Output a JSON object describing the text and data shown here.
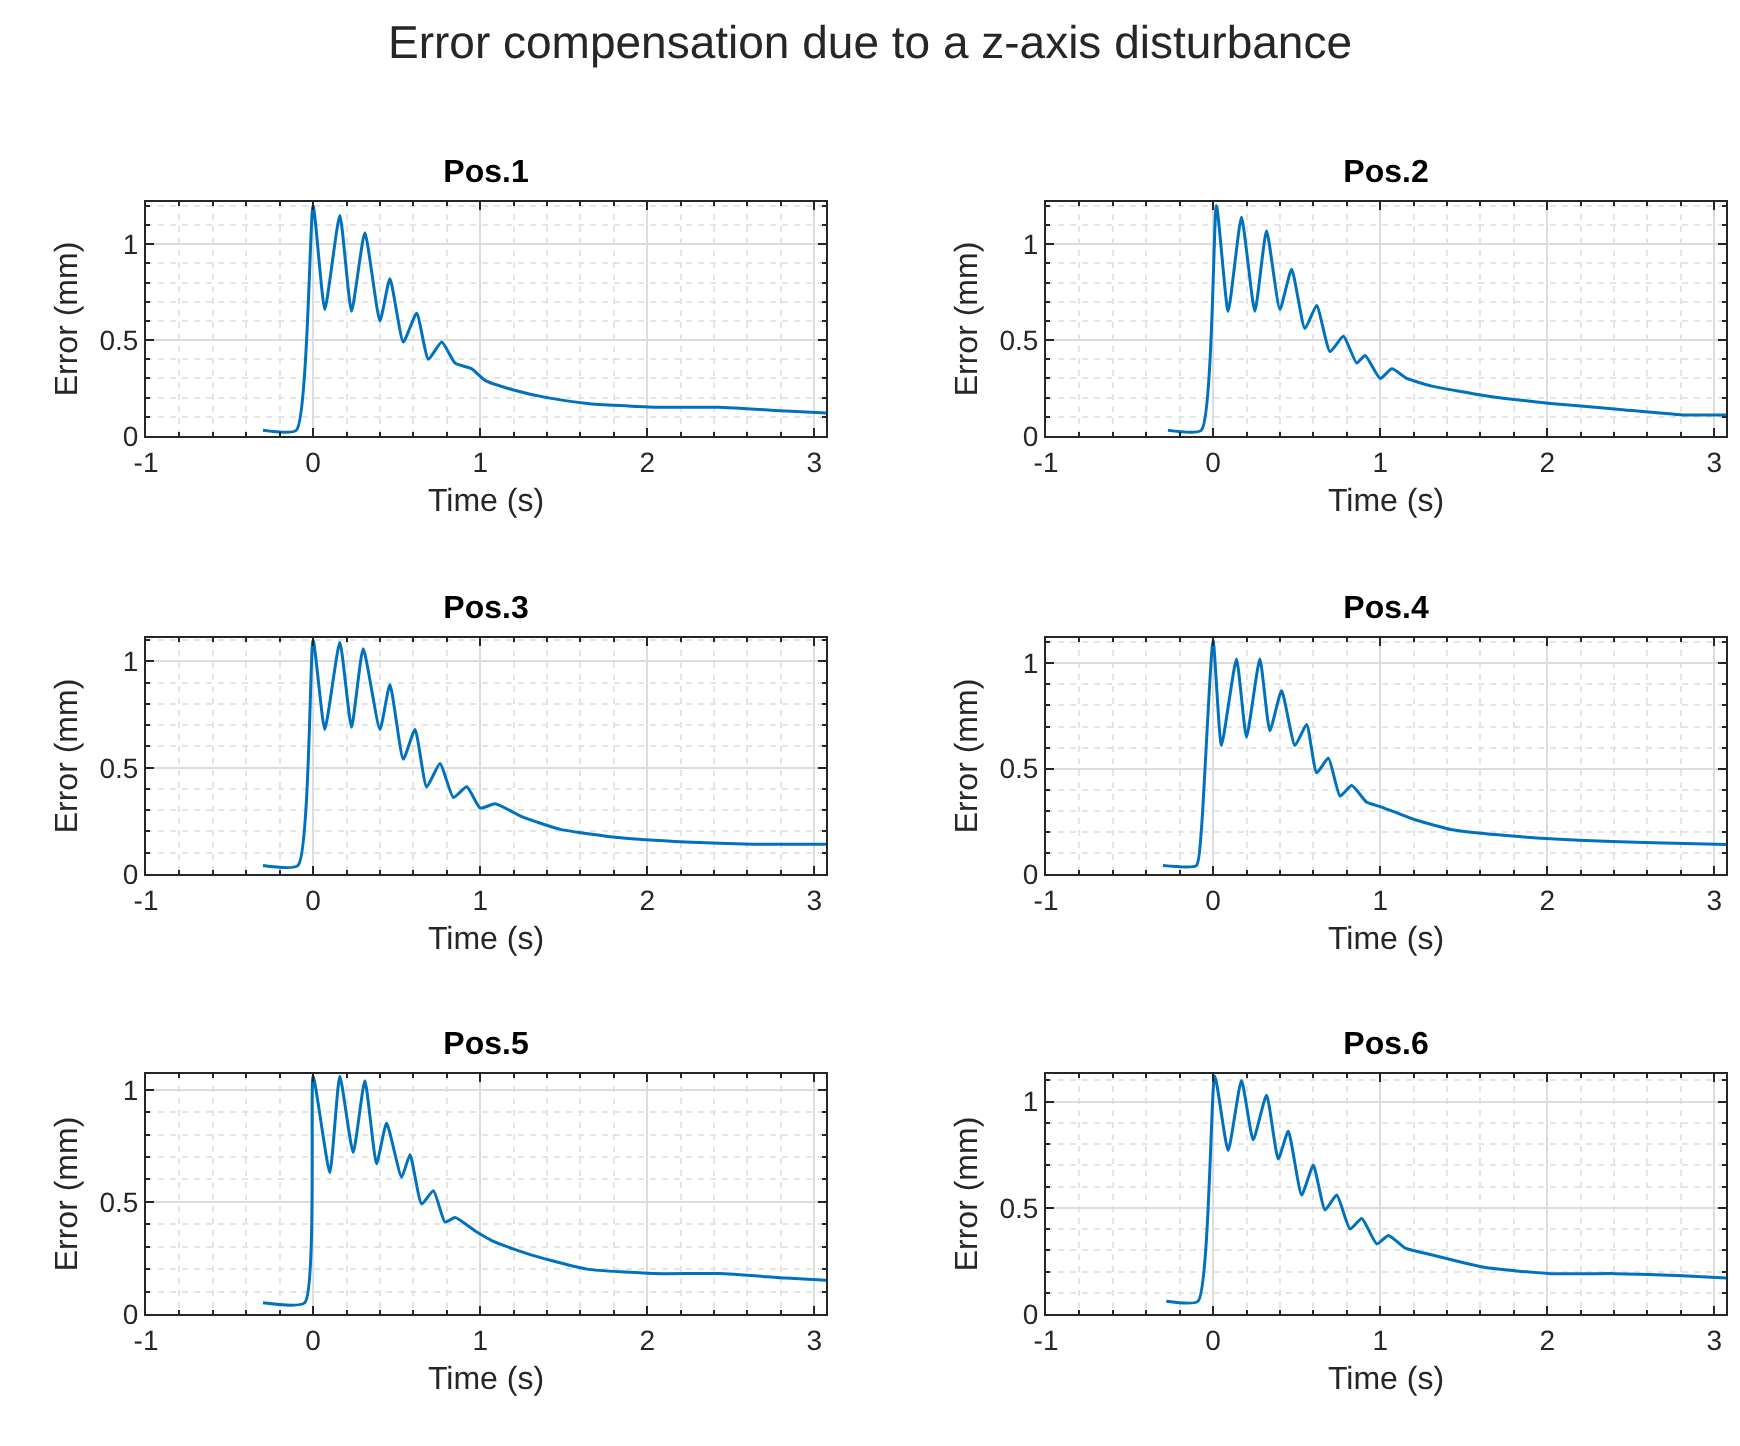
{
  "chart_data": [
    {
      "type": "other",
      "title": "Error compensation due to a z-axis disturbance"
    },
    {
      "type": "line",
      "title": "Pos.1",
      "xlabel": "Time (s)",
      "ylabel": "Error (mm)",
      "xlim": [
        -1,
        3.07
      ],
      "ylim": [
        0,
        1.22
      ],
      "xticks": [
        -1,
        0,
        1,
        2,
        3
      ],
      "yticks": [
        0,
        0.5,
        1
      ],
      "grid": true,
      "line_style": "solid",
      "series": [
        {
          "color": "#0072bd",
          "x": [
            -0.3,
            -0.1,
            0,
            0.07,
            0.16,
            0.23,
            0.31,
            0.4,
            0.46,
            0.54,
            0.62,
            0.69,
            0.77,
            0.85,
            0.95,
            1.03,
            1.2,
            1.4,
            1.64,
            2.04,
            2.43,
            2.83,
            3.07
          ],
          "values": [
            0.03,
            0.03,
            1.2,
            0.66,
            1.15,
            0.65,
            1.06,
            0.6,
            0.82,
            0.49,
            0.64,
            0.4,
            0.49,
            0.38,
            0.35,
            0.29,
            0.24,
            0.2,
            0.17,
            0.15,
            0.15,
            0.13,
            0.12
          ]
        }
      ]
    },
    {
      "type": "line",
      "title": "Pos.2",
      "xlabel": "Time (s)",
      "ylabel": "Error (mm)",
      "xlim": [
        -1,
        3.07
      ],
      "ylim": [
        0,
        1.22
      ],
      "xticks": [
        -1,
        0,
        1,
        2,
        3
      ],
      "yticks": [
        0,
        0.5,
        1
      ],
      "grid": true,
      "line_style": "solid",
      "series": [
        {
          "color": "#0072bd",
          "x": [
            -0.27,
            -0.07,
            0.02,
            0.09,
            0.17,
            0.25,
            0.32,
            0.4,
            0.47,
            0.55,
            0.62,
            0.7,
            0.78,
            0.86,
            0.91,
            1.0,
            1.07,
            1.16,
            1.31,
            1.63,
            2.02,
            2.42,
            2.81,
            3.07
          ],
          "values": [
            0.03,
            0.03,
            1.2,
            0.65,
            1.14,
            0.65,
            1.07,
            0.66,
            0.87,
            0.56,
            0.68,
            0.44,
            0.52,
            0.38,
            0.42,
            0.3,
            0.35,
            0.3,
            0.26,
            0.21,
            0.17,
            0.14,
            0.11,
            0.11
          ]
        }
      ]
    },
    {
      "type": "line",
      "title": "Pos.3",
      "xlabel": "Time (s)",
      "ylabel": "Error (mm)",
      "xlim": [
        -1,
        3.07
      ],
      "ylim": [
        0,
        1.11
      ],
      "xticks": [
        -1,
        0,
        1,
        2,
        3
      ],
      "yticks": [
        0,
        0.5,
        1
      ],
      "grid": true,
      "line_style": "solid",
      "series": [
        {
          "color": "#0072bd",
          "x": [
            -0.3,
            -0.09,
            0,
            0.07,
            0.16,
            0.23,
            0.3,
            0.4,
            0.46,
            0.54,
            0.61,
            0.68,
            0.76,
            0.84,
            0.92,
            1.0,
            1.09,
            1.25,
            1.48,
            1.84,
            2.23,
            2.63,
            3.07
          ],
          "values": [
            0.04,
            0.04,
            1.1,
            0.68,
            1.09,
            0.69,
            1.06,
            0.68,
            0.89,
            0.54,
            0.68,
            0.41,
            0.52,
            0.36,
            0.41,
            0.31,
            0.33,
            0.27,
            0.21,
            0.17,
            0.15,
            0.14,
            0.14
          ]
        }
      ]
    },
    {
      "type": "line",
      "title": "Pos.4",
      "xlabel": "Time (s)",
      "ylabel": "Error (mm)",
      "xlim": [
        -1,
        3.07
      ],
      "ylim": [
        0,
        1.12
      ],
      "xticks": [
        -1,
        0,
        1,
        2,
        3
      ],
      "yticks": [
        0,
        0.5,
        1
      ],
      "grid": true,
      "line_style": "solid",
      "series": [
        {
          "color": "#0072bd",
          "x": [
            -0.3,
            -0.1,
            -0.07,
            0,
            0.05,
            0.14,
            0.2,
            0.28,
            0.34,
            0.41,
            0.49,
            0.56,
            0.62,
            0.69,
            0.76,
            0.83,
            0.92,
            1.0,
            1.2,
            1.43,
            1.79,
            2.19,
            2.58,
            3.07
          ],
          "values": [
            0.04,
            0.04,
            0.21,
            1.11,
            0.61,
            1.02,
            0.65,
            1.02,
            0.68,
            0.87,
            0.61,
            0.71,
            0.48,
            0.55,
            0.37,
            0.42,
            0.34,
            0.32,
            0.26,
            0.21,
            0.18,
            0.16,
            0.15,
            0.14
          ]
        }
      ]
    },
    {
      "type": "line",
      "title": "Pos.5",
      "xlabel": "Time (s)",
      "ylabel": "Error (mm)",
      "xlim": [
        -1,
        3.07
      ],
      "ylim": [
        0,
        1.07
      ],
      "xticks": [
        -1,
        0,
        1,
        2,
        3
      ],
      "yticks": [
        0,
        0.5,
        1
      ],
      "grid": true,
      "line_style": "solid",
      "series": [
        {
          "color": "#0072bd",
          "x": [
            -0.3,
            -0.05,
            0,
            0.1,
            0.16,
            0.24,
            0.31,
            0.38,
            0.44,
            0.53,
            0.58,
            0.65,
            0.72,
            0.79,
            0.85,
            0.97,
            1.09,
            1.32,
            1.64,
            2.04,
            2.43,
            2.83,
            3.07
          ],
          "values": [
            0.05,
            0.05,
            1.06,
            0.63,
            1.06,
            0.72,
            1.04,
            0.67,
            0.85,
            0.61,
            0.71,
            0.49,
            0.55,
            0.41,
            0.43,
            0.37,
            0.32,
            0.26,
            0.2,
            0.18,
            0.18,
            0.16,
            0.15
          ]
        }
      ]
    },
    {
      "type": "line",
      "title": "Pos.6",
      "xlabel": "Time (s)",
      "ylabel": "Error (mm)",
      "xlim": [
        -1,
        3.07
      ],
      "ylim": [
        0,
        1.13
      ],
      "xticks": [
        -1,
        0,
        1,
        2,
        3
      ],
      "yticks": [
        0,
        0.5,
        1
      ],
      "grid": true,
      "line_style": "solid",
      "series": [
        {
          "color": "#0072bd",
          "x": [
            -0.28,
            -0.09,
            0.01,
            0.09,
            0.17,
            0.24,
            0.32,
            0.39,
            0.45,
            0.53,
            0.6,
            0.67,
            0.74,
            0.82,
            0.89,
            0.98,
            1.05,
            1.15,
            1.3,
            1.62,
            2.02,
            2.41,
            2.81,
            3.07
          ],
          "values": [
            0.06,
            0.06,
            1.12,
            0.77,
            1.1,
            0.82,
            1.03,
            0.73,
            0.86,
            0.56,
            0.7,
            0.49,
            0.56,
            0.4,
            0.45,
            0.33,
            0.37,
            0.31,
            0.28,
            0.22,
            0.19,
            0.19,
            0.18,
            0.17
          ]
        }
      ]
    }
  ]
}
